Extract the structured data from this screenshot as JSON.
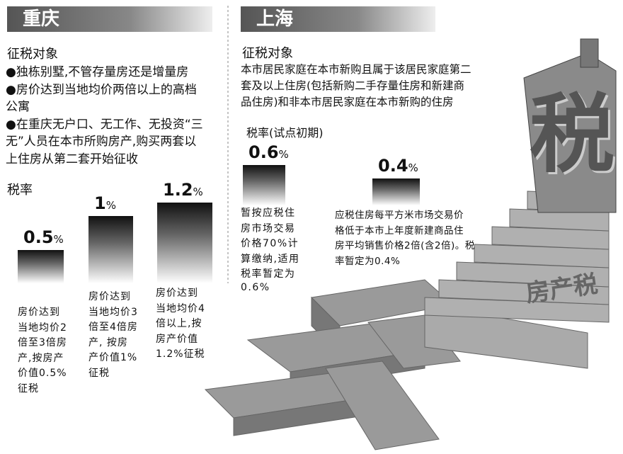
{
  "chongqing": {
    "title": "重庆",
    "subject_heading": "征税对象",
    "subject_items": [
      [
        "●独栋别墅,不管存量房还是增量房"
      ],
      [
        "●房价达到当地均价两倍以上的高档",
        "公寓"
      ],
      [
        "●在重庆无户口、无工作、无投资“三",
        "无”人员在本市所购房产,购买两套以",
        "上住房从第二套开始征收"
      ]
    ],
    "rate_heading": "税率",
    "rates": [
      {
        "value": 0.5,
        "unit": "%",
        "description": [
          "房价达到",
          "当地均价2",
          "倍至3倍房",
          "产,按房产",
          "价值0.5%",
          "征税"
        ]
      },
      {
        "value": 1,
        "unit": "%",
        "description": [
          "房价达到",
          "当地均价3",
          "倍至4倍房",
          "产, 按房",
          "产价值1%",
          "征税"
        ]
      },
      {
        "value": 1.2,
        "unit": "%",
        "description": [
          "房价达到",
          "当地均价4",
          "倍以上,按",
          "房产价值",
          "1.2%征税"
        ]
      }
    ]
  },
  "shanghai": {
    "title": "上海",
    "subject_heading": "征税对象",
    "subject_lines": [
      "本市居民家庭在本市新购且属于该居民家庭第二",
      "套及以上住房(包括新购二手存量住房和新建商",
      "品住房)和非本市居民家庭在本市新购的住房"
    ],
    "rate_heading": "税率(试点初期)",
    "rates": [
      {
        "value": 0.6,
        "unit": "%",
        "description": [
          "暂按应税住",
          "房市场交易",
          "价格70%计",
          "算缴纳,适用",
          "税率暂定为",
          "0.6%"
        ]
      },
      {
        "value": 0.4,
        "unit": "%",
        "description": [
          "应税住房每平方米市场交易价",
          "格低于本市上年度新建商品住",
          "房平均销售价格2倍(含2倍)。税",
          "率暂定为0.4%"
        ]
      }
    ]
  },
  "illustration": {
    "building_text": "税",
    "stairs_text": "房产税"
  }
}
